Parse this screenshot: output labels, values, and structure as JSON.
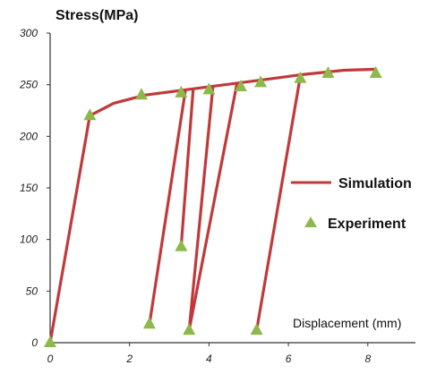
{
  "chart_data": {
    "type": "line",
    "ylabel": "Stress(MPa)",
    "xlabel": "Displacement (mm)",
    "xlim": [
      0,
      9.2
    ],
    "ylim": [
      0,
      300
    ],
    "xticks": [
      "0",
      "2",
      "4",
      "6",
      "8"
    ],
    "yticks": [
      "0",
      "50",
      "100",
      "150",
      "200",
      "250",
      "300"
    ],
    "grid": false,
    "legend_position": "right",
    "series": [
      {
        "name": "Simulation",
        "color": "#c0393b",
        "segments": [
          [
            [
              0,
              0
            ],
            [
              1.0,
              220
            ],
            [
              1.6,
              232
            ],
            [
              2.4,
              240
            ],
            [
              3.4,
              245
            ],
            [
              4.4,
              250
            ],
            [
              5.4,
              255
            ],
            [
              6.4,
              260
            ],
            [
              7.4,
              264
            ],
            [
              8.2,
              265
            ]
          ],
          [
            [
              2.5,
              18
            ],
            [
              3.4,
              243
            ]
          ],
          [
            [
              3.3,
              93
            ],
            [
              3.6,
              245
            ]
          ],
          [
            [
              3.5,
              12
            ],
            [
              4.1,
              248
            ]
          ],
          [
            [
              3.5,
              12
            ],
            [
              4.7,
              250
            ]
          ],
          [
            [
              5.2,
              12
            ],
            [
              6.3,
              258
            ]
          ]
        ]
      },
      {
        "name": "Experiment",
        "color": "#8db84a",
        "marker": "triangle",
        "points": [
          [
            0,
            0
          ],
          [
            1.0,
            220
          ],
          [
            2.3,
            240
          ],
          [
            3.3,
            242
          ],
          [
            4.0,
            245
          ],
          [
            4.8,
            248
          ],
          [
            5.3,
            252
          ],
          [
            6.3,
            256
          ],
          [
            7.0,
            261
          ],
          [
            8.2,
            261
          ],
          [
            2.5,
            18
          ],
          [
            3.3,
            93
          ],
          [
            3.5,
            12
          ],
          [
            5.2,
            12
          ]
        ]
      }
    ]
  }
}
